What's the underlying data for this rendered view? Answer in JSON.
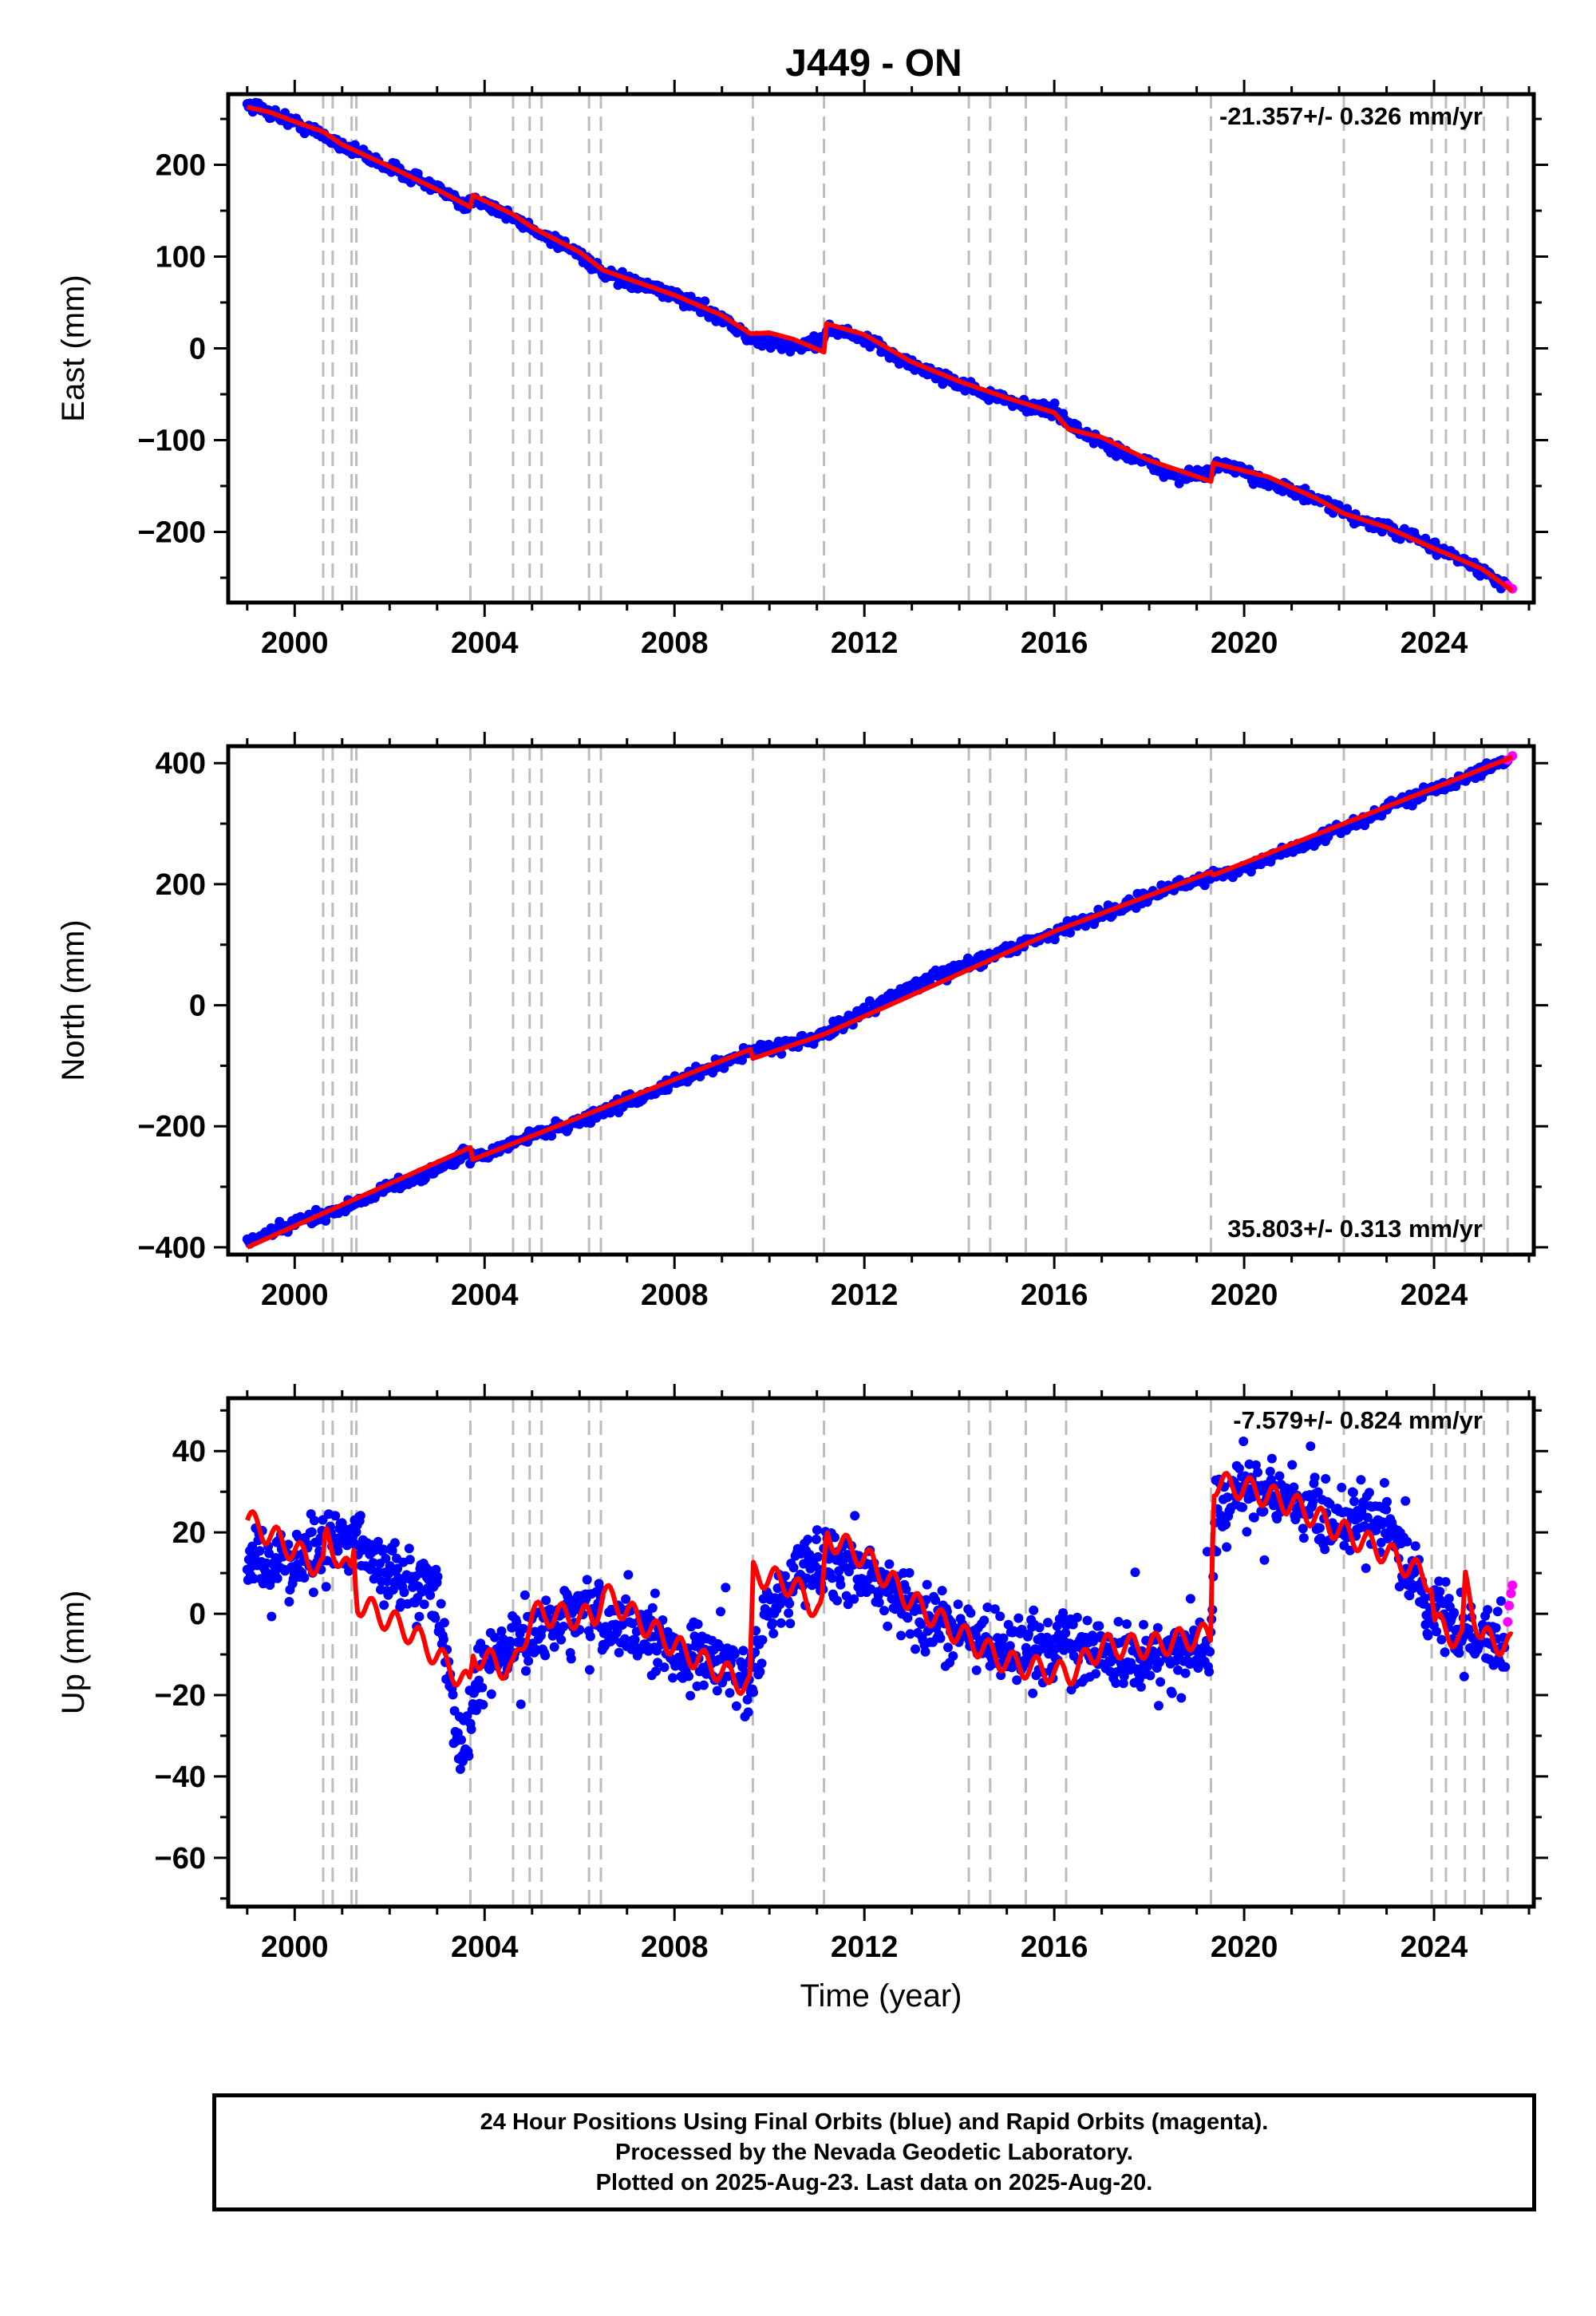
{
  "title": "J449 - ON",
  "footer": {
    "line1": "24 Hour Positions Using Final Orbits (blue) and Rapid Orbits (magenta).",
    "line2": "Processed by the Nevada Geodetic Laboratory.",
    "line3": "Plotted on 2025-Aug-23. Last data on 2025-Aug-20."
  },
  "colors": {
    "final": "#0000ff",
    "rapid": "#ff00ff",
    "model": "#ff0000",
    "steps": "#bdbdbd"
  },
  "steps": [
    2000.6,
    2000.8,
    2001.2,
    2001.3,
    2003.7,
    2004.6,
    2004.95,
    2005.2,
    2006.2,
    2006.45,
    2009.65,
    2011.15,
    2014.2,
    2014.65,
    2015.4,
    2016.25,
    2019.3,
    2022.1,
    2023.95,
    2024.25,
    2024.65,
    2025.05,
    2025.55
  ],
  "chart_data": [
    {
      "type": "scatter",
      "panel": "east",
      "ylabel": "East (mm)",
      "xlabel": "",
      "xlim": [
        1998.6,
        2026.1
      ],
      "ylim": [
        -277,
        277
      ],
      "xticks": [
        2000,
        2004,
        2008,
        2012,
        2016,
        2020,
        2024
      ],
      "yticks": [
        -200,
        -100,
        0,
        100,
        200
      ],
      "rate": "-21.357+/- 0.326 mm/yr",
      "rate_position": "top-right",
      "series": [
        {
          "role": "final",
          "values": [
            [
              1999.0,
              267
            ],
            [
              2000.0,
              246
            ],
            [
              2001.0,
              222
            ],
            [
              2002.0,
              197
            ],
            [
              2003.0,
              175
            ],
            [
              2003.6,
              152
            ],
            [
              2003.8,
              165
            ],
            [
              2005.0,
              130
            ],
            [
              2006.0,
              104
            ],
            [
              2006.5,
              80
            ],
            [
              2008.0,
              58
            ],
            [
              2009.0,
              34
            ],
            [
              2009.6,
              10
            ],
            [
              2010.5,
              2
            ],
            [
              2011.1,
              8
            ],
            [
              2011.2,
              22
            ],
            [
              2012.0,
              10
            ],
            [
              2013.0,
              -18
            ],
            [
              2014.0,
              -38
            ],
            [
              2015.0,
              -58
            ],
            [
              2016.0,
              -68
            ],
            [
              2016.5,
              -90
            ],
            [
              2017.5,
              -115
            ],
            [
              2018.5,
              -138
            ],
            [
              2019.3,
              -138
            ],
            [
              2019.4,
              -125
            ],
            [
              2020.5,
              -145
            ],
            [
              2021.5,
              -165
            ],
            [
              2022.5,
              -188
            ],
            [
              2023.5,
              -205
            ],
            [
              2024.5,
              -228
            ],
            [
              2025.5,
              -258
            ]
          ]
        },
        {
          "role": "rapid",
          "values": [
            [
              2025.55,
              -258
            ],
            [
              2025.65,
              -262
            ]
          ]
        },
        {
          "role": "model",
          "values": [
            [
              1999.0,
              263
            ],
            [
              1999.5,
              257
            ],
            [
              2000.0,
              247
            ],
            [
              2000.6,
              236
            ],
            [
              2001.0,
              222
            ],
            [
              2002.0,
              198
            ],
            [
              2003.0,
              173
            ],
            [
              2003.7,
              154
            ],
            [
              2003.75,
              167
            ],
            [
              2004.6,
              146
            ],
            [
              2005.0,
              132
            ],
            [
              2006.0,
              105
            ],
            [
              2006.5,
              85
            ],
            [
              2008.0,
              58
            ],
            [
              2009.0,
              36
            ],
            [
              2009.6,
              16
            ],
            [
              2010.0,
              17
            ],
            [
              2010.5,
              10
            ],
            [
              2011.15,
              -4
            ],
            [
              2011.2,
              27
            ],
            [
              2012.0,
              15
            ],
            [
              2013.0,
              -15
            ],
            [
              2014.0,
              -36
            ],
            [
              2015.0,
              -54
            ],
            [
              2016.0,
              -70
            ],
            [
              2016.3,
              -88
            ],
            [
              2017.0,
              -97
            ],
            [
              2018.0,
              -122
            ],
            [
              2019.3,
              -145
            ],
            [
              2019.35,
              -125
            ],
            [
              2020.5,
              -140
            ],
            [
              2021.5,
              -163
            ],
            [
              2022.1,
              -180
            ],
            [
              2023.0,
              -195
            ],
            [
              2024.0,
              -218
            ],
            [
              2025.0,
              -240
            ],
            [
              2025.65,
              -264
            ]
          ]
        }
      ]
    },
    {
      "type": "scatter",
      "panel": "north",
      "ylabel": "North (mm)",
      "xlabel": "",
      "xlim": [
        1998.6,
        2026.1
      ],
      "ylim": [
        -412,
        428
      ],
      "xticks": [
        2000,
        2004,
        2008,
        2012,
        2016,
        2020,
        2024
      ],
      "yticks": [
        -400,
        -200,
        0,
        200,
        400
      ],
      "rate": "35.803+/- 0.313 mm/yr",
      "rate_position": "bottom-right",
      "series": [
        {
          "role": "final",
          "values": [
            [
              1999.0,
              -393
            ],
            [
              2000.0,
              -360
            ],
            [
              2001.0,
              -336
            ],
            [
              2002.0,
              -300
            ],
            [
              2003.0,
              -272
            ],
            [
              2003.6,
              -245
            ],
            [
              2003.8,
              -254
            ],
            [
              2005.0,
              -215
            ],
            [
              2006.0,
              -192
            ],
            [
              2007.0,
              -160
            ],
            [
              2008.0,
              -128
            ],
            [
              2009.0,
              -96
            ],
            [
              2009.6,
              -75
            ],
            [
              2010.5,
              -62
            ],
            [
              2011.15,
              -50
            ],
            [
              2012.0,
              -10
            ],
            [
              2013.0,
              30
            ],
            [
              2014.0,
              62
            ],
            [
              2015.0,
              92
            ],
            [
              2016.0,
              120
            ],
            [
              2017.0,
              150
            ],
            [
              2018.0,
              180
            ],
            [
              2019.3,
              215
            ],
            [
              2020.0,
              225
            ],
            [
              2021.0,
              258
            ],
            [
              2022.0,
              290
            ],
            [
              2023.0,
              325
            ],
            [
              2024.0,
              360
            ],
            [
              2025.0,
              385
            ],
            [
              2025.55,
              405
            ]
          ]
        },
        {
          "role": "rapid",
          "values": [
            [
              2025.55,
              405
            ],
            [
              2025.65,
              412
            ]
          ]
        },
        {
          "role": "model",
          "values": [
            [
              1999.0,
              -400
            ],
            [
              2003.7,
              -235
            ],
            [
              2003.75,
              -255
            ],
            [
              2009.6,
              -73
            ],
            [
              2009.65,
              -88
            ],
            [
              2011.15,
              -48
            ],
            [
              2016.0,
              122
            ],
            [
              2019.3,
              220
            ],
            [
              2019.35,
              215
            ],
            [
              2025.65,
              410
            ]
          ]
        }
      ]
    },
    {
      "type": "scatter",
      "panel": "up",
      "ylabel": "Up (mm)",
      "xlabel": "Time (year)",
      "xlim": [
        1998.6,
        2026.1
      ],
      "ylim": [
        -72,
        53
      ],
      "xticks": [
        2000,
        2004,
        2008,
        2012,
        2016,
        2020,
        2024
      ],
      "yticks": [
        -60,
        -40,
        -20,
        0,
        20,
        40
      ],
      "rate": "-7.579+/- 0.824 mm/yr",
      "rate_position": "top-right",
      "series": [
        {
          "role": "final",
          "values": [
            [
              1999.0,
              14
            ],
            [
              2000.0,
              12
            ],
            [
              2000.6,
              17
            ],
            [
              2001.3,
              18
            ],
            [
              2002.0,
              10
            ],
            [
              2003.0,
              6
            ],
            [
              2003.5,
              -36
            ],
            [
              2003.7,
              -25
            ],
            [
              2004.0,
              -12
            ],
            [
              2005.0,
              -5
            ],
            [
              2006.0,
              0
            ],
            [
              2007.0,
              -4
            ],
            [
              2008.0,
              -8
            ],
            [
              2009.0,
              -12
            ],
            [
              2009.6,
              -16
            ],
            [
              2010.0,
              2
            ],
            [
              2011.0,
              14
            ],
            [
              2012.0,
              10
            ],
            [
              2013.0,
              2
            ],
            [
              2014.0,
              -5
            ],
            [
              2015.0,
              -9
            ],
            [
              2016.0,
              -8
            ],
            [
              2017.0,
              -10
            ],
            [
              2018.0,
              -11
            ],
            [
              2019.3,
              -8
            ],
            [
              2019.4,
              28
            ],
            [
              2020.0,
              31
            ],
            [
              2021.0,
              28
            ],
            [
              2022.0,
              22
            ],
            [
              2023.0,
              22
            ],
            [
              2023.8,
              3
            ],
            [
              2024.5,
              -4
            ],
            [
              2025.5,
              -8
            ]
          ]
        },
        {
          "role": "rapid",
          "values": [
            [
              2025.55,
              -2
            ],
            [
              2025.58,
              2
            ],
            [
              2025.62,
              5
            ],
            [
              2025.65,
              7
            ]
          ]
        },
        {
          "role": "model",
          "values": [
            [
              1999.0,
              23
            ],
            [
              2000.6,
              11
            ],
            [
              2000.65,
              19
            ],
            [
              2001.2,
              9
            ],
            [
              2001.25,
              16
            ],
            [
              2001.3,
              3
            ],
            [
              2002.5,
              -5
            ],
            [
              2003.7,
              -18
            ],
            [
              2003.75,
              -10
            ],
            [
              2004.6,
              -14
            ],
            [
              2005.0,
              0
            ],
            [
              2006.3,
              -1
            ],
            [
              2006.5,
              5
            ],
            [
              2008.0,
              -8
            ],
            [
              2009.6,
              -18
            ],
            [
              2009.65,
              10
            ],
            [
              2010.5,
              7
            ],
            [
              2011.1,
              0
            ],
            [
              2011.2,
              19
            ],
            [
              2012.0,
              14
            ],
            [
              2013.0,
              3
            ],
            [
              2014.0,
              -5
            ],
            [
              2015.0,
              -12
            ],
            [
              2016.3,
              -15
            ],
            [
              2017.0,
              -8
            ],
            [
              2018.0,
              -8
            ],
            [
              2019.3,
              -5
            ],
            [
              2019.35,
              32
            ],
            [
              2020.0,
              31
            ],
            [
              2021.0,
              27
            ],
            [
              2022.1,
              20
            ],
            [
              2023.0,
              15
            ],
            [
              2023.95,
              8
            ],
            [
              2024.0,
              -2
            ],
            [
              2024.6,
              -7
            ],
            [
              2024.65,
              8
            ],
            [
              2025.0,
              -6
            ],
            [
              2025.65,
              -8
            ]
          ]
        }
      ]
    }
  ]
}
